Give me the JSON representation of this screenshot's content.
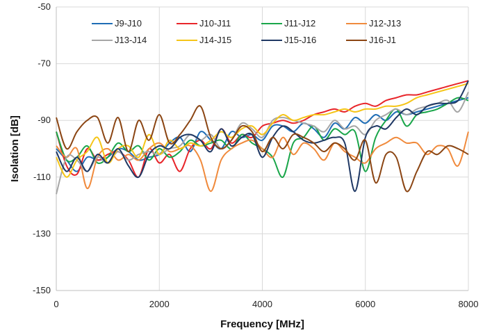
{
  "chart_data": {
    "type": "line",
    "title": "",
    "xlabel": "Frequency [MHz]",
    "ylabel": "Isolation [dB]",
    "xlim": [
      0,
      8000
    ],
    "ylim": [
      -150,
      -50
    ],
    "x_ticks": [
      0,
      2000,
      4000,
      6000,
      8000
    ],
    "y_ticks": [
      -150,
      -130,
      -110,
      -90,
      -70,
      -50
    ],
    "x_tick_labels": [
      "0",
      "2000",
      "4000",
      "6000",
      "8000"
    ],
    "y_tick_labels": [
      "-150",
      "-130",
      "-110",
      "-90",
      "-70",
      "-50"
    ],
    "grid": true,
    "legend_position": "top",
    "series": [
      {
        "name": "J9-J10",
        "color": "#1f6db5",
        "x": [
          0,
          200,
          400,
          600,
          800,
          1000,
          1200,
          1400,
          1600,
          1800,
          2000,
          2200,
          2400,
          2600,
          2800,
          3000,
          3200,
          3400,
          3600,
          3800,
          4000,
          4200,
          4400,
          4600,
          4800,
          5000,
          5200,
          5400,
          5600,
          5800,
          6000,
          6200,
          6400,
          6600,
          6800,
          7000,
          7200,
          7400,
          7600,
          7800,
          8000
        ],
        "y": [
          -100,
          -104,
          -108,
          -103,
          -104,
          -103,
          -100,
          -101,
          -104,
          -103,
          -102,
          -98,
          -96,
          -101,
          -94,
          -97,
          -100,
          -94,
          -96,
          -95,
          -97,
          -92,
          -92,
          -94,
          -91,
          -93,
          -96,
          -91,
          -93,
          -89,
          -91,
          -88,
          -90,
          -87,
          -88,
          -87,
          -86,
          -85,
          -84,
          -83,
          -82
        ]
      },
      {
        "name": "J10-J11",
        "color": "#e8252a",
        "x": [
          0,
          200,
          400,
          600,
          800,
          1000,
          1200,
          1400,
          1600,
          1800,
          2000,
          2200,
          2400,
          2600,
          2800,
          3000,
          3200,
          3400,
          3600,
          3800,
          4000,
          4200,
          4400,
          4600,
          4800,
          5000,
          5200,
          5400,
          5600,
          5800,
          6000,
          6200,
          6400,
          6600,
          6800,
          7000,
          7200,
          7400,
          7600,
          7800,
          8000
        ],
        "y": [
          -94,
          -106,
          -109,
          -100,
          -104,
          -102,
          -101,
          -104,
          -110,
          -100,
          -105,
          -102,
          -108,
          -100,
          -97,
          -100,
          -93,
          -98,
          -95,
          -96,
          -92,
          -91,
          -90,
          -91,
          -90,
          -88,
          -87,
          -86,
          -87,
          -85,
          -84,
          -85,
          -83,
          -82,
          -81,
          -81,
          -80,
          -79,
          -78,
          -77,
          -76
        ]
      },
      {
        "name": "J11-J12",
        "color": "#1aa64a",
        "x": [
          0,
          200,
          400,
          600,
          800,
          1000,
          1200,
          1400,
          1600,
          1800,
          2000,
          2200,
          2400,
          2600,
          2800,
          3000,
          3200,
          3400,
          3600,
          3800,
          4000,
          4200,
          4400,
          4600,
          4800,
          5000,
          5200,
          5400,
          5600,
          5800,
          6000,
          6200,
          6400,
          6600,
          6800,
          7000,
          7200,
          7400,
          7600,
          7800,
          8000
        ],
        "y": [
          -94,
          -104,
          -103,
          -99,
          -105,
          -103,
          -98,
          -101,
          -99,
          -104,
          -100,
          -103,
          -101,
          -97,
          -99,
          -98,
          -97,
          -100,
          -95,
          -98,
          -100,
          -103,
          -110,
          -98,
          -96,
          -92,
          -97,
          -93,
          -95,
          -94,
          -108,
          -96,
          -90,
          -86,
          -92,
          -88,
          -87,
          -86,
          -84,
          -82,
          -83
        ]
      },
      {
        "name": "J12-J13",
        "color": "#f08a3c",
        "x": [
          0,
          200,
          400,
          600,
          800,
          1000,
          1200,
          1400,
          1600,
          1800,
          2000,
          2200,
          2400,
          2600,
          2800,
          3000,
          3200,
          3400,
          3600,
          3800,
          4000,
          4200,
          4400,
          4600,
          4800,
          5000,
          5200,
          5400,
          5600,
          5800,
          6000,
          6200,
          6400,
          6600,
          6800,
          7000,
          7200,
          7400,
          7600,
          7800,
          8000
        ],
        "y": [
          -99,
          -103,
          -100,
          -114,
          -103,
          -100,
          -104,
          -102,
          -104,
          -100,
          -98,
          -101,
          -100,
          -99,
          -104,
          -115,
          -104,
          -100,
          -98,
          -97,
          -100,
          -103,
          -96,
          -102,
          -98,
          -100,
          -104,
          -98,
          -101,
          -103,
          -105,
          -100,
          -98,
          -96,
          -98,
          -98,
          -102,
          -99,
          -100,
          -106,
          -94
        ]
      },
      {
        "name": "J13-J14",
        "color": "#a6a6a6",
        "x": [
          0,
          200,
          400,
          600,
          800,
          1000,
          1200,
          1400,
          1600,
          1800,
          2000,
          2200,
          2400,
          2600,
          2800,
          3000,
          3200,
          3400,
          3600,
          3800,
          4000,
          4200,
          4400,
          4600,
          4800,
          5000,
          5200,
          5400,
          5600,
          5800,
          6000,
          6200,
          6400,
          6600,
          6800,
          7000,
          7200,
          7400,
          7600,
          7800,
          8000
        ],
        "y": [
          -116,
          -103,
          -104,
          -108,
          -103,
          -105,
          -101,
          -104,
          -102,
          -101,
          -102,
          -100,
          -99,
          -95,
          -97,
          -95,
          -100,
          -97,
          -91,
          -93,
          -96,
          -90,
          -89,
          -90,
          -91,
          -92,
          -94,
          -90,
          -93,
          -92,
          -95,
          -90,
          -88,
          -86,
          -88,
          -86,
          -85,
          -84,
          -83,
          -87,
          -80
        ]
      },
      {
        "name": "J14-J15",
        "color": "#f5c518",
        "x": [
          0,
          200,
          400,
          600,
          800,
          1000,
          1200,
          1400,
          1600,
          1800,
          2000,
          2200,
          2400,
          2600,
          2800,
          3000,
          3200,
          3400,
          3600,
          3800,
          4000,
          4200,
          4400,
          4600,
          4800,
          5000,
          5200,
          5400,
          5600,
          5800,
          6000,
          6200,
          6400,
          6600,
          6800,
          7000,
          7200,
          7400,
          7600,
          7800,
          8000
        ],
        "y": [
          -103,
          -110,
          -104,
          -101,
          -96,
          -105,
          -100,
          -99,
          -103,
          -95,
          -102,
          -97,
          -100,
          -98,
          -99,
          -97,
          -94,
          -96,
          -93,
          -92,
          -95,
          -91,
          -88,
          -90,
          -89,
          -88,
          -88,
          -87,
          -86,
          -87,
          -86,
          -86,
          -85,
          -85,
          -84,
          -82,
          -81,
          -80,
          -79,
          -78,
          -77
        ]
      },
      {
        "name": "J15-J16",
        "color": "#1f3864",
        "x": [
          0,
          200,
          400,
          600,
          800,
          1000,
          1200,
          1400,
          1600,
          1800,
          2000,
          2200,
          2400,
          2600,
          2800,
          3000,
          3200,
          3400,
          3600,
          3800,
          4000,
          4200,
          4400,
          4600,
          4800,
          5000,
          5200,
          5400,
          5600,
          5800,
          6000,
          6200,
          6400,
          6600,
          6800,
          7000,
          7200,
          7400,
          7600,
          7800,
          8000
        ],
        "y": [
          -101,
          -108,
          -103,
          -108,
          -102,
          -105,
          -100,
          -106,
          -110,
          -102,
          -99,
          -100,
          -96,
          -95,
          -97,
          -101,
          -93,
          -99,
          -96,
          -95,
          -103,
          -96,
          -92,
          -94,
          -97,
          -98,
          -97,
          -96,
          -98,
          -115,
          -96,
          -92,
          -93,
          -89,
          -86,
          -88,
          -85,
          -84,
          -84,
          -83,
          -76
        ]
      },
      {
        "name": "J16-J1",
        "color": "#8b4513",
        "x": [
          0,
          200,
          400,
          600,
          800,
          1000,
          1200,
          1400,
          1600,
          1800,
          2000,
          2200,
          2400,
          2600,
          2800,
          3000,
          3200,
          3400,
          3600,
          3800,
          4000,
          4200,
          4400,
          4600,
          4800,
          5000,
          5200,
          5400,
          5600,
          5800,
          6000,
          6200,
          6400,
          6600,
          6800,
          7000,
          7200,
          7400,
          7600,
          7800,
          8000
        ],
        "y": [
          -89,
          -100,
          -94,
          -90,
          -89,
          -98,
          -89,
          -101,
          -90,
          -97,
          -88,
          -98,
          -95,
          -90,
          -85,
          -96,
          -100,
          -97,
          -92,
          -94,
          -101,
          -96,
          -100,
          -95,
          -96,
          -98,
          -101,
          -98,
          -100,
          -104,
          -97,
          -112,
          -102,
          -103,
          -115,
          -108,
          -101,
          -102,
          -99,
          -100,
          -102
        ]
      }
    ]
  }
}
